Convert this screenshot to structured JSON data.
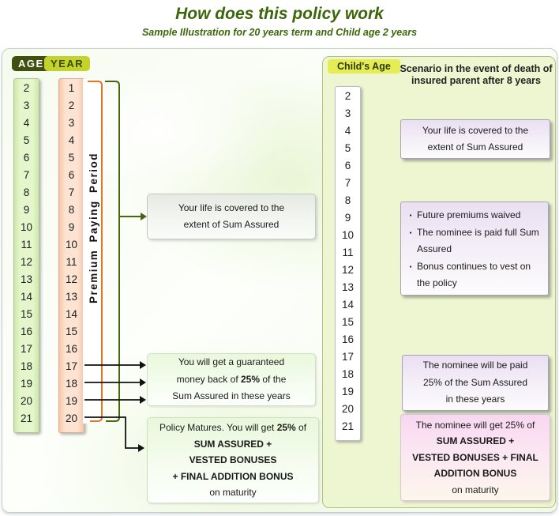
{
  "title": "How does this policy work",
  "subtitle": "Sample Illustration for 20 years term and Child age 2 years",
  "colors": {
    "title_green": "#3c660a",
    "bracket_orange": "#e4761f",
    "bracket_green": "#4a650f",
    "arrow_purple": "#7c1d87",
    "arrow_black": "#111111",
    "age_label_bg": "#42500f",
    "year_label_bg": "#c3d32c",
    "childs_age_label_bg": "#e5ed52",
    "age_column_bg": "#e4f6cb",
    "year_column_bg": "#fde3d2",
    "right_panel_bg": "#edf5d1"
  },
  "left": {
    "age_label": "AGE",
    "year_label": "YEAR",
    "ages": [
      2,
      3,
      4,
      5,
      6,
      7,
      8,
      9,
      10,
      11,
      12,
      13,
      14,
      15,
      16,
      17,
      18,
      19,
      20,
      21
    ],
    "years": [
      1,
      2,
      3,
      4,
      5,
      6,
      7,
      8,
      9,
      10,
      11,
      12,
      13,
      14,
      15,
      16,
      17,
      18,
      19,
      20
    ],
    "premium_period_label": "Premium Paying Period",
    "box_life_cover": "Your life is covered to the\nextent of Sum Assured",
    "box_money_back": "You will get a guaranteed\nmoney back of **25%** of the\nSum Assured in these years",
    "box_maturity": "Policy Matures. You will get **25%** of\n**SUM ASSURED +**\n**VESTED BONUSES**\n**+ FINAL ADDITION BONUS**\non maturity"
  },
  "right": {
    "childs_age_label": "Child's Age",
    "ages": [
      2,
      3,
      4,
      5,
      6,
      7,
      8,
      9,
      10,
      11,
      12,
      13,
      14,
      15,
      16,
      17,
      18,
      19,
      20,
      21
    ],
    "scenario_heading": "Scenario in the event of death of\ninsured parent after 8 years",
    "box_life_cover": "Your life is covered to the\nextent of Sum Assured",
    "bullet_char": "▪",
    "box_death_bullets": [
      "Future premiums waived",
      "The nominee is paid full Sum Assured",
      "Bonus continues to vest on the policy"
    ],
    "box_nominee_money_back": "The nominee will be paid\n25% of the Sum Assured\nin these years",
    "box_nominee_maturity": "The nominee will get 25% of\n**SUM ASSURED +**\n**VESTED BONUSES + FINAL**\n**ADDITION BONUS**\non maturity"
  }
}
